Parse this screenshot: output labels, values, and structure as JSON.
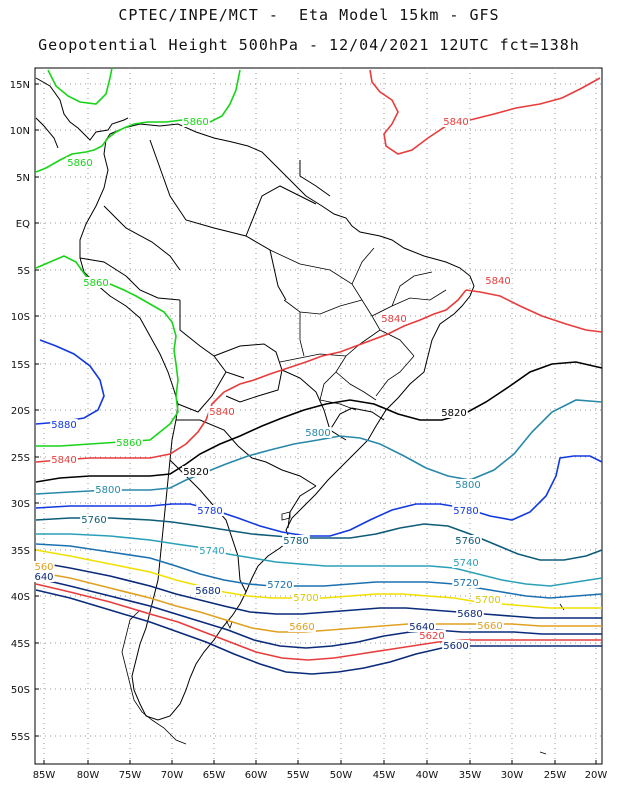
{
  "header": {
    "line1": "CPTEC/INPE/MCT -  Eta Model 15km - GFS",
    "line2": "Geopotential Height 500hPa - 12/04/2021 12UTC fct=138h"
  },
  "axes": {
    "lat_labels": [
      "15N",
      "10N",
      "5N",
      "EQ",
      "5S",
      "10S",
      "15S",
      "20S",
      "25S",
      "30S",
      "35S",
      "40S",
      "45S",
      "50S",
      "55S"
    ],
    "lon_labels": [
      "85W",
      "80W",
      "75W",
      "70W",
      "65W",
      "60W",
      "55W",
      "50W",
      "45W",
      "40W",
      "35W",
      "30W",
      "25W",
      "20W"
    ]
  },
  "contours": [
    {
      "level": "5860",
      "color": "#18d418"
    },
    {
      "level": "5840",
      "color": "#e83c3c"
    },
    {
      "level": "5820",
      "color": "#000000"
    },
    {
      "level": "5800",
      "color": "#2888a8"
    },
    {
      "level": "5780",
      "color": "#1238e0"
    },
    {
      "level": "5760",
      "color": "#0e5c78"
    },
    {
      "level": "5740",
      "color": "#2aa0b8"
    },
    {
      "level": "5720",
      "color": "#1a70b0"
    },
    {
      "level": "5700",
      "color": "#f0e000"
    },
    {
      "level": "5680",
      "color": "#0a2a7a"
    },
    {
      "level": "5660",
      "color": "#e0a020"
    },
    {
      "level": "5640",
      "color": "#0a2a7a"
    },
    {
      "level": "5620",
      "color": "#e83c3c"
    },
    {
      "level": "5600",
      "color": "#0a2a7a"
    }
  ],
  "labels": [
    {
      "text": "5860",
      "color": "#18d418"
    },
    {
      "text": "5860",
      "color": "#18d418"
    },
    {
      "text": "5860",
      "color": "#18d418"
    },
    {
      "text": "5860",
      "color": "#18d418"
    },
    {
      "text": "5840",
      "color": "#e83c3c"
    },
    {
      "text": "5840",
      "color": "#e83c3c"
    },
    {
      "text": "5840",
      "color": "#e83c3c"
    },
    {
      "text": "5840",
      "color": "#e83c3c"
    },
    {
      "text": "5840",
      "color": "#e83c3c"
    },
    {
      "text": "5820",
      "color": "#000000"
    },
    {
      "text": "5820",
      "color": "#000000"
    },
    {
      "text": "5800",
      "color": "#2888a8"
    },
    {
      "text": "5800",
      "color": "#2888a8"
    },
    {
      "text": "5800",
      "color": "#2888a8"
    },
    {
      "text": "5780",
      "color": "#1238e0"
    },
    {
      "text": "5780",
      "color": "#1238e0"
    },
    {
      "text": "5780",
      "color": "#0e5c78"
    },
    {
      "text": "5760",
      "color": "#0e5c78"
    },
    {
      "text": "5760",
      "color": "#0e5c78"
    },
    {
      "text": "5740",
      "color": "#2aa0b8"
    },
    {
      "text": "5740",
      "color": "#2aa0b8"
    },
    {
      "text": "5720",
      "color": "#1a70b0"
    },
    {
      "text": "5720",
      "color": "#1a70b0"
    },
    {
      "text": "5700",
      "color": "#d8c800"
    },
    {
      "text": "5700",
      "color": "#d8c800"
    },
    {
      "text": "5680",
      "color": "#0a2a7a"
    },
    {
      "text": "5680",
      "color": "#0a2a7a"
    },
    {
      "text": "5660",
      "color": "#e0a020"
    },
    {
      "text": "5660",
      "color": "#e0a020"
    },
    {
      "text": "5640",
      "color": "#0a2a7a"
    },
    {
      "text": "5620",
      "color": "#e83c3c"
    },
    {
      "text": "5600",
      "color": "#0a2a7a"
    },
    {
      "text": "560",
      "color": "#e0a020"
    },
    {
      "text": "640",
      "color": "#0a2a7a"
    },
    {
      "text": "5880",
      "color": "#1238e0"
    }
  ]
}
